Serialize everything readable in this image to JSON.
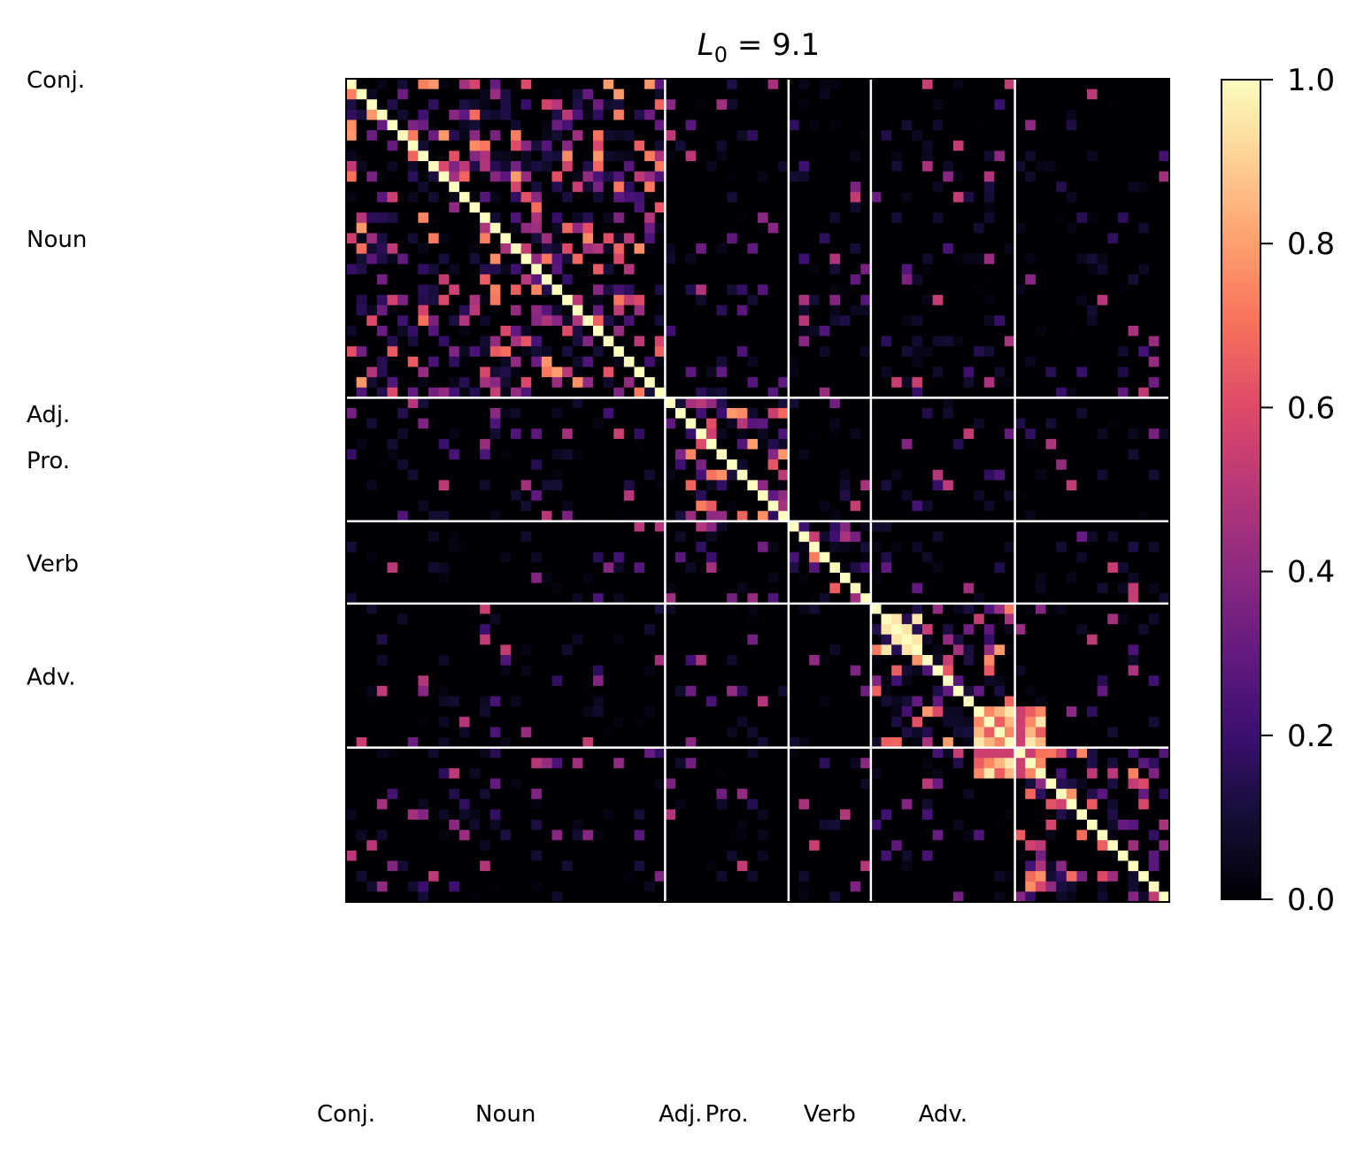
{
  "chart_data": {
    "type": "heatmap",
    "title_main": "L",
    "title_sub": "0",
    "title_rest": " = 9.1",
    "groups": [
      {
        "name": "Noun",
        "start": 0,
        "end": 31
      },
      {
        "name": "Pro.",
        "start": 31,
        "end": 43
      },
      {
        "name": "Verb",
        "start": 43,
        "end": 51
      },
      {
        "name": "Adv.",
        "start": 51,
        "end": 65
      },
      {
        "name": "Adj.",
        "start": 65,
        "end": 0
      },
      {
        "name": "Conj.",
        "start": 0,
        "end": 0
      }
    ],
    "size": 80,
    "boundaries": [
      31,
      43,
      51,
      65
    ],
    "colorbar": {
      "min": 0.0,
      "max": 1.0,
      "ticks": [
        "0.0",
        "0.2",
        "0.4",
        "0.6",
        "0.8",
        "1.0"
      ],
      "colormap": "magma"
    },
    "grid_color": "#ffffff"
  }
}
